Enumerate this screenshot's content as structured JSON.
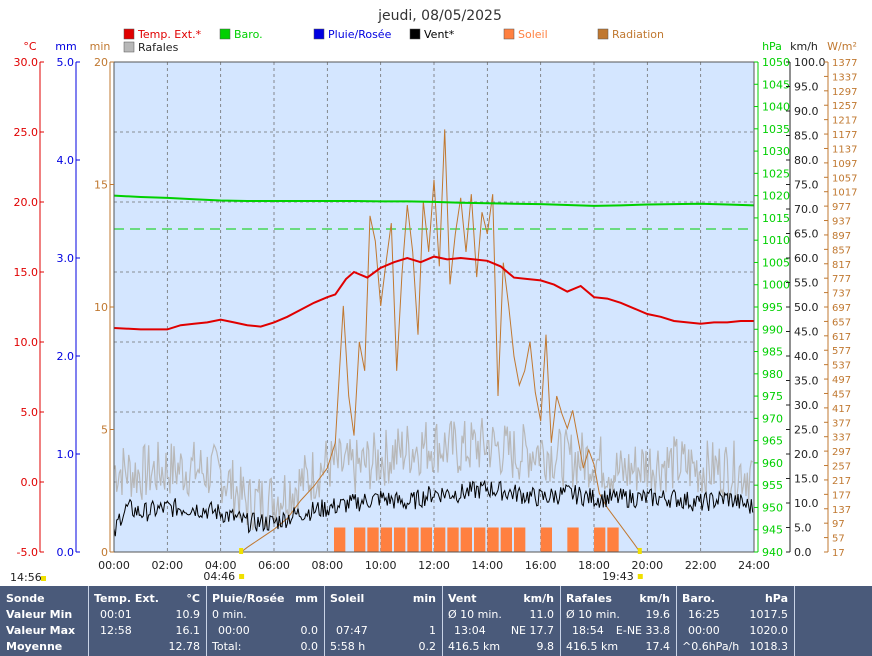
{
  "title": "jeudi, 08/05/2025",
  "colors": {
    "temp": "#e00000",
    "baro": "#00d000",
    "rain": "#0000e0",
    "wind": "#000000",
    "sun": "#ff8040",
    "radiation": "#c07830",
    "gust": "#b8b8b8",
    "plot_bg": "#d4e6ff",
    "grid": "#707070"
  },
  "legend": [
    {
      "label": "Temp. Ext.*",
      "color": "#e00000"
    },
    {
      "label": "Baro.",
      "color": "#00d000"
    },
    {
      "label": "Pluie/Rosée",
      "color": "#0000e0"
    },
    {
      "label": "Vent*",
      "color": "#000000"
    },
    {
      "label": "Soleil",
      "color": "#ff8040"
    },
    {
      "label": "Radiation",
      "color": "#c07830"
    },
    {
      "label": "Rafales",
      "color": "#b8b8b8"
    }
  ],
  "chart_data": {
    "type": "line",
    "x_range": [
      0,
      24
    ],
    "x_ticks": [
      "00:00",
      "02:00",
      "04:00",
      "06:00",
      "08:00",
      "10:00",
      "12:00",
      "14:00",
      "16:00",
      "18:00",
      "20:00",
      "22:00",
      "24:00"
    ],
    "axes": {
      "temp": {
        "unit": "°C",
        "min": -5,
        "max": 30,
        "ticks": [
          "-5.0",
          "0.0",
          "5.0",
          "10.0",
          "15.0",
          "20.0",
          "25.0",
          "30.0"
        ]
      },
      "rain": {
        "unit": "mm",
        "min": 0,
        "max": 5,
        "ticks": [
          "0.0",
          "1.0",
          "2.0",
          "3.0",
          "4.0",
          "5.0"
        ]
      },
      "sun": {
        "unit": "min",
        "min": 0,
        "max": 20,
        "ticks": [
          "0",
          "5",
          "10",
          "15",
          "20"
        ]
      },
      "baro": {
        "unit": "hPa",
        "min": 940,
        "max": 1050,
        "ticks": [
          "940",
          "945",
          "950",
          "955",
          "960",
          "965",
          "970",
          "975",
          "980",
          "985",
          "990",
          "995",
          "1000",
          "1005",
          "1010",
          "1015",
          "1020",
          "1025",
          "1030",
          "1035",
          "1040",
          "1045",
          "1050"
        ]
      },
      "wind": {
        "unit": "km/h",
        "min": 0,
        "max": 100,
        "ticks": [
          "0.0",
          "5.0",
          "10.0",
          "15.0",
          "20.0",
          "25.0",
          "30.0",
          "35.0",
          "40.0",
          "45.0",
          "50.0",
          "55.0",
          "60.0",
          "65.0",
          "70.0",
          "75.0",
          "80.0",
          "85.0",
          "90.0",
          "95.0",
          "100.0"
        ]
      },
      "radiation": {
        "unit": "W/m²",
        "min": 17,
        "max": 1377,
        "ticks": [
          "17",
          "57",
          "97",
          "137",
          "177",
          "217",
          "257",
          "297",
          "337",
          "377",
          "417",
          "457",
          "497",
          "537",
          "577",
          "617",
          "657",
          "697",
          "737",
          "777",
          "817",
          "857",
          "897",
          "937",
          "977",
          "1017",
          "1057",
          "1097",
          "1137",
          "1177",
          "1217",
          "1257",
          "1297",
          "1337",
          "1377"
        ]
      }
    },
    "baro_reference": 1012.5,
    "series": [
      {
        "name": "Temp. Ext.*",
        "axis": "temp",
        "x": [
          0,
          1,
          2,
          2.5,
          3,
          3.5,
          4,
          4.5,
          5,
          5.5,
          6,
          6.5,
          7,
          7.5,
          8,
          8.3,
          8.7,
          9,
          9.5,
          10,
          10.5,
          11,
          11.5,
          12,
          12.5,
          13,
          13.5,
          14,
          14.5,
          15,
          15.5,
          16,
          16.5,
          17,
          17.5,
          18,
          18.5,
          19,
          19.5,
          20,
          20.5,
          21,
          21.5,
          22,
          22.5,
          23,
          23.5,
          24
        ],
        "y": [
          11.0,
          10.9,
          10.9,
          11.2,
          11.3,
          11.4,
          11.6,
          11.4,
          11.2,
          11.1,
          11.4,
          11.8,
          12.3,
          12.8,
          13.2,
          13.4,
          14.5,
          15.0,
          14.6,
          15.3,
          15.7,
          16.0,
          15.7,
          16.1,
          15.9,
          16.0,
          15.9,
          15.8,
          15.4,
          14.6,
          14.5,
          14.4,
          14.1,
          13.6,
          14.0,
          13.2,
          13.1,
          12.8,
          12.4,
          12.0,
          11.8,
          11.5,
          11.4,
          11.3,
          11.4,
          11.4,
          11.5,
          11.5
        ]
      },
      {
        "name": "Baro.",
        "axis": "baro",
        "x": [
          0,
          1,
          2,
          3,
          4,
          5,
          6,
          7,
          8,
          9,
          10,
          11,
          12,
          13,
          14,
          15,
          16,
          17,
          18,
          19,
          20,
          21,
          22,
          23,
          24
        ],
        "y": [
          1020.0,
          1019.7,
          1019.5,
          1019.2,
          1018.9,
          1018.8,
          1018.8,
          1018.8,
          1018.8,
          1018.8,
          1018.7,
          1018.7,
          1018.6,
          1018.4,
          1018.3,
          1018.2,
          1018.1,
          1017.9,
          1017.7,
          1017.8,
          1018.0,
          1018.1,
          1018.2,
          1018.0,
          1017.8
        ]
      },
      {
        "name": "Vent*",
        "axis": "wind",
        "x": [
          0,
          0.2,
          0.5,
          1,
          2,
          3,
          4,
          5,
          6,
          7,
          8,
          9,
          10,
          11,
          12,
          13,
          14,
          15,
          16,
          17,
          18,
          19,
          20,
          21,
          22,
          23,
          24
        ],
        "y": [
          3,
          7,
          9,
          8,
          9,
          9,
          8,
          6,
          6,
          8,
          9,
          10,
          11,
          10,
          12,
          12,
          13,
          12,
          11,
          12,
          11,
          11,
          11,
          11,
          10,
          11,
          9
        ]
      },
      {
        "name": "Rafales",
        "axis": "wind",
        "x": [
          0,
          1,
          2,
          3,
          4,
          5,
          6,
          7,
          8,
          9,
          10,
          11,
          12,
          13,
          14,
          15,
          16,
          17,
          18,
          19,
          20,
          21,
          22,
          23,
          24
        ],
        "y": [
          17,
          16,
          17,
          17,
          16,
          10,
          11,
          14,
          18,
          17,
          19,
          21,
          22,
          21,
          22,
          20,
          21,
          19,
          19,
          16,
          18,
          18,
          17,
          17,
          16
        ]
      },
      {
        "name": "Radiation",
        "axis": "radiation",
        "x": [
          4.77,
          5,
          5.5,
          6,
          6.5,
          7,
          7.5,
          8,
          8.3,
          8.6,
          8.8,
          9,
          9.2,
          9.4,
          9.6,
          9.8,
          10,
          10.2,
          10.4,
          10.6,
          10.8,
          11,
          11.2,
          11.4,
          11.6,
          11.8,
          12,
          12.2,
          12.4,
          12.6,
          12.8,
          13,
          13.2,
          13.4,
          13.6,
          13.8,
          14,
          14.2,
          14.4,
          14.6,
          14.8,
          15,
          15.2,
          15.4,
          15.6,
          15.8,
          16,
          16.2,
          16.4,
          16.6,
          16.8,
          17,
          17.2,
          17.4,
          17.6,
          17.8,
          18,
          18.2,
          18.5,
          19,
          19.5,
          19.72
        ],
        "y": [
          17,
          30,
          55,
          80,
          110,
          160,
          200,
          250,
          320,
          700,
          450,
          340,
          600,
          520,
          950,
          880,
          700,
          820,
          930,
          520,
          790,
          980,
          850,
          620,
          990,
          850,
          1050,
          810,
          1190,
          760,
          900,
          1000,
          850,
          1010,
          780,
          960,
          900,
          1010,
          450,
          820,
          700,
          560,
          480,
          520,
          600,
          460,
          380,
          620,
          320,
          450,
          400,
          360,
          410,
          330,
          250,
          300,
          260,
          180,
          140,
          90,
          40,
          17
        ]
      },
      {
        "name": "Soleil",
        "axis": "sun",
        "type": "bars",
        "x": [
          8.25,
          8.5,
          9,
          9.5,
          10,
          10.5,
          11,
          11.5,
          12,
          12.5,
          13,
          13.5,
          14,
          14.5,
          15,
          15.5,
          16,
          16.5,
          17,
          17.5,
          18,
          18.5,
          19
        ],
        "y": [
          1,
          0,
          1,
          1,
          1,
          1,
          1,
          1,
          1,
          1,
          1,
          1,
          1,
          1,
          1,
          0,
          1,
          0,
          1,
          0,
          1,
          1,
          0
        ]
      }
    ]
  },
  "markers": {
    "sunrise": "04:46",
    "sunset": "19:43",
    "left_time": "14:56"
  },
  "stats": {
    "row_labels": [
      "Sonde",
      "Valeur Min",
      "Valeur Max",
      "Moyenne"
    ],
    "temp": {
      "title": "Temp. Ext.",
      "unit": "°C",
      "min_time": "00:01",
      "min_val": "10.9",
      "max_time": "12:58",
      "max_val": "16.1",
      "avg": "12.78"
    },
    "rain": {
      "title": "Pluie/Rosée",
      "unit": "mm",
      "min_time": "0 min.",
      "max_time": "00:00",
      "max_val": "0.0",
      "avg_label": "Total:",
      "avg": "0.0"
    },
    "sun": {
      "title": "Soleil",
      "unit": "min",
      "max_time": "07:47",
      "max_val": "1",
      "avg_label": "5:58 h",
      "avg": "0.2"
    },
    "wind": {
      "title": "Vent",
      "unit": "km/h",
      "min_label": "Ø 10 min.",
      "min_val": "11.0",
      "max_time": "13:04",
      "max_val": "NE 17.7",
      "avg_label": "416.5 km",
      "avg": "9.8"
    },
    "gust": {
      "title": "Rafales",
      "unit": "km/h",
      "min_label": "Ø 10 min.",
      "min_val": "19.6",
      "max_time": "18:54",
      "max_val": "E-NE 33.8",
      "avg_label": "416.5 km",
      "avg": "17.4"
    },
    "baro": {
      "title": "Baro.",
      "unit": "hPa",
      "min_time": "16:25",
      "min_val": "1017.5",
      "max_time": "00:00",
      "max_val": "1020.0",
      "avg_label": "^0.6hPa/h",
      "avg": "1018.3"
    }
  }
}
